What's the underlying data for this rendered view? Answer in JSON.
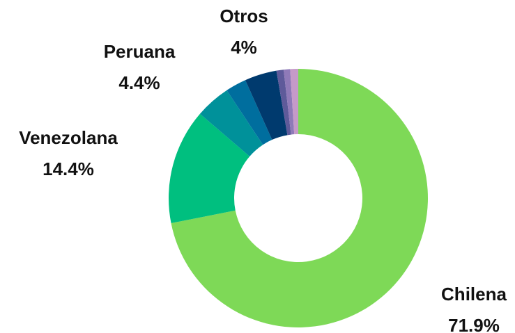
{
  "chart_data": {
    "type": "donut",
    "categories": [
      "Chilena",
      "Venezolana",
      "Peruana",
      null,
      "Otros",
      null,
      null,
      null
    ],
    "values": [
      71.9,
      14.4,
      4.4,
      2.6,
      4,
      0.9,
      0.8,
      1.0
    ],
    "value_labels": [
      "71.9%",
      "14.4%",
      "4.4%",
      null,
      "4%",
      null,
      null,
      null
    ],
    "colors": [
      "#7ed957",
      "#00bf7f",
      "#00919a",
      "#006e9e",
      "#003a6e",
      "#5e5a9a",
      "#8f7ab8",
      "#c59ac8"
    ]
  }
}
